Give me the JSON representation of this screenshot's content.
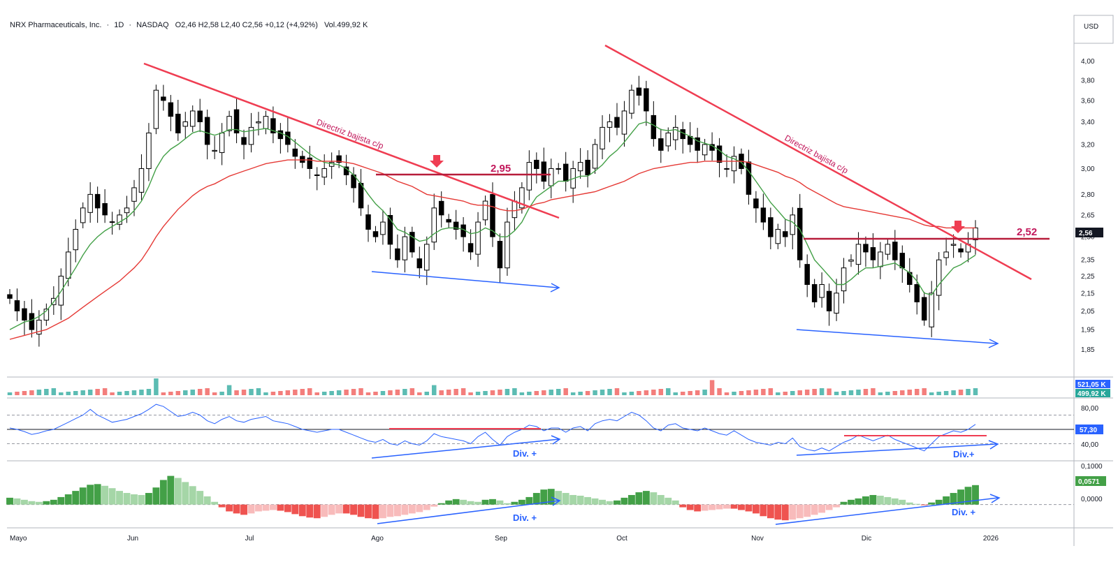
{
  "header": {
    "symbol": "NRX Pharmaceuticals, Inc.",
    "interval": "1D",
    "exchange": "NASDAQ",
    "ohlc": "O2,46  H2,58  L2,40  C2,56  +0,12 (+4,92%)",
    "volume": "Vol.499,92 K",
    "currency": "USD"
  },
  "chart_data": [
    {
      "type": "line",
      "panel": "price",
      "scale": "log",
      "ylim": [
        1.75,
        4.25
      ],
      "yticks": [
        "4,00",
        "3,80",
        "3,60",
        "3,40",
        "3,20",
        "3,00",
        "2,80",
        "2,65",
        "2,50",
        "2,35",
        "2,25",
        "2,15",
        "2,05",
        "1,95",
        "1,85"
      ],
      "xticks": [
        "Mayo",
        "Jun",
        "Jul",
        "Ago",
        "Sep",
        "Oct",
        "Nov",
        "Dic",
        "2026"
      ],
      "last_price_label": "2,56",
      "series": [
        {
          "name": "",
          "color": "#000000",
          "values": [
            2.12,
            2.05,
            2.0,
            1.95,
            2.0,
            2.06,
            2.12,
            2.25,
            2.4,
            2.55,
            2.7,
            2.8,
            2.7,
            2.65,
            2.6,
            2.65,
            2.7,
            2.85,
            3.0,
            3.3,
            3.7,
            3.6,
            3.45,
            3.3,
            3.4,
            3.5,
            3.4,
            3.2,
            3.15,
            3.3,
            3.45,
            3.3,
            3.2,
            3.35,
            3.4,
            3.45,
            3.3,
            3.25,
            3.2,
            3.1,
            3.05,
            3.0,
            2.95,
            3.0,
            3.05,
            3.05,
            2.95,
            2.85,
            2.7,
            2.55,
            2.5,
            2.6,
            2.45,
            2.35,
            2.5,
            2.4,
            2.3,
            2.45,
            2.7,
            2.65,
            2.6,
            2.55,
            2.5,
            2.4,
            2.6,
            2.75,
            2.5,
            2.3,
            2.6,
            2.75,
            2.85,
            3.05,
            3.0,
            2.9,
            3.0,
            3.0,
            2.9,
            3.0,
            3.05,
            2.95,
            3.2,
            3.35,
            3.4,
            3.35,
            3.5,
            3.7,
            3.65,
            3.5,
            3.25,
            3.15,
            3.3,
            3.35,
            3.25,
            3.2,
            3.15,
            3.2,
            3.15,
            3.05,
            3.0,
            3.1,
            3.0,
            2.8,
            2.7,
            2.6,
            2.5,
            2.55,
            2.5,
            2.65,
            2.35,
            2.2,
            2.1,
            2.2,
            2.05,
            2.15,
            2.3,
            2.35,
            2.45,
            2.4,
            2.35,
            2.4,
            2.45,
            2.35,
            2.3,
            2.2,
            2.1,
            2.0,
            2.15,
            2.35,
            2.4,
            2.45,
            2.4,
            2.45,
            2.56
          ]
        },
        {
          "name": "",
          "color": "#43a047",
          "values": [
            1.95,
            1.97,
            1.99,
            2.0,
            2.02,
            2.05,
            2.1,
            2.16,
            2.23,
            2.3,
            2.38,
            2.45,
            2.5,
            2.54,
            2.57,
            2.6,
            2.63,
            2.68,
            2.75,
            2.86,
            3.0,
            3.1,
            3.16,
            3.2,
            3.25,
            3.3,
            3.32,
            3.3,
            3.28,
            3.3,
            3.33,
            3.33,
            3.31,
            3.32,
            3.33,
            3.34,
            3.32,
            3.3,
            3.27,
            3.22,
            3.17,
            3.12,
            3.08,
            3.05,
            3.04,
            3.03,
            3.0,
            2.95,
            2.88,
            2.8,
            2.73,
            2.68,
            2.62,
            2.55,
            2.53,
            2.5,
            2.47,
            2.48,
            2.52,
            2.55,
            2.56,
            2.56,
            2.55,
            2.52,
            2.53,
            2.56,
            2.54,
            2.5,
            2.5,
            2.54,
            2.6,
            2.7,
            2.78,
            2.82,
            2.86,
            2.9,
            2.9,
            2.92,
            2.94,
            2.94,
            2.98,
            3.03,
            3.1,
            3.15,
            3.22,
            3.3,
            3.38,
            3.4,
            3.37,
            3.33,
            3.32,
            3.33,
            3.3,
            3.27,
            3.23,
            3.21,
            3.19,
            3.15,
            3.1,
            3.08,
            3.05,
            2.98,
            2.9,
            2.82,
            2.74,
            2.68,
            2.62,
            2.6,
            2.55,
            2.45,
            2.35,
            2.3,
            2.25,
            2.2,
            2.2,
            2.23,
            2.27,
            2.3,
            2.3,
            2.31,
            2.32,
            2.33,
            2.3,
            2.27,
            2.22,
            2.15,
            2.14,
            2.2,
            2.25,
            2.3,
            2.32,
            2.35,
            2.38
          ]
        },
        {
          "name": "",
          "color": "#e53935",
          "values": [
            1.9,
            1.91,
            1.92,
            1.93,
            1.94,
            1.95,
            1.97,
            1.99,
            2.01,
            2.04,
            2.07,
            2.1,
            2.13,
            2.16,
            2.19,
            2.22,
            2.26,
            2.3,
            2.35,
            2.42,
            2.5,
            2.57,
            2.63,
            2.69,
            2.74,
            2.79,
            2.83,
            2.86,
            2.88,
            2.91,
            2.94,
            2.96,
            2.98,
            3.0,
            3.02,
            3.04,
            3.05,
            3.06,
            3.07,
            3.07,
            3.07,
            3.07,
            3.06,
            3.06,
            3.06,
            3.06,
            3.05,
            3.04,
            3.02,
            3.0,
            2.98,
            2.96,
            2.93,
            2.9,
            2.88,
            2.86,
            2.83,
            2.8,
            2.79,
            2.78,
            2.77,
            2.76,
            2.75,
            2.73,
            2.72,
            2.72,
            2.71,
            2.69,
            2.68,
            2.68,
            2.69,
            2.71,
            2.73,
            2.74,
            2.76,
            2.77,
            2.78,
            2.79,
            2.8,
            2.81,
            2.82,
            2.84,
            2.86,
            2.88,
            2.9,
            2.93,
            2.96,
            2.98,
            3.0,
            3.01,
            3.02,
            3.03,
            3.04,
            3.05,
            3.05,
            3.06,
            3.06,
            3.06,
            3.06,
            3.06,
            3.06,
            3.05,
            3.03,
            3.01,
            2.99,
            2.97,
            2.94,
            2.92,
            2.89,
            2.85,
            2.82,
            2.79,
            2.76,
            2.73,
            2.71,
            2.7,
            2.69,
            2.68,
            2.67,
            2.66,
            2.65,
            2.64,
            2.63,
            2.62,
            2.6,
            2.58,
            2.57,
            2.57,
            2.56,
            2.56,
            2.56,
            2.56,
            2.56
          ]
        }
      ]
    },
    {
      "type": "bar",
      "panel": "volume",
      "labels": [
        "521,05 K",
        "499,92 K"
      ],
      "colors": {
        "up": "#26a69a",
        "down": "#ef5350"
      }
    },
    {
      "type": "line",
      "panel": "rsi",
      "ylim": [
        10,
        90
      ],
      "yticks": [
        "80,00",
        "40,00"
      ],
      "last_label": "57,30",
      "levels": [
        70,
        50,
        30
      ],
      "series": [
        {
          "name": "",
          "color": "#2962ff",
          "values": [
            52,
            50,
            47,
            43,
            45,
            48,
            50,
            55,
            60,
            65,
            70,
            78,
            70,
            65,
            60,
            62,
            64,
            68,
            72,
            78,
            85,
            82,
            75,
            68,
            70,
            74,
            70,
            62,
            58,
            64,
            68,
            62,
            60,
            64,
            66,
            68,
            62,
            60,
            58,
            54,
            50,
            48,
            46,
            48,
            50,
            50,
            46,
            42,
            38,
            34,
            32,
            36,
            30,
            28,
            34,
            30,
            28,
            34,
            44,
            40,
            38,
            36,
            34,
            30,
            40,
            46,
            36,
            28,
            40,
            46,
            50,
            56,
            54,
            48,
            52,
            52,
            46,
            52,
            54,
            48,
            58,
            62,
            64,
            62,
            68,
            74,
            70,
            62,
            52,
            48,
            56,
            58,
            52,
            50,
            48,
            52,
            48,
            44,
            42,
            48,
            42,
            36,
            32,
            30,
            28,
            32,
            30,
            38,
            26,
            22,
            20,
            24,
            20,
            26,
            32,
            36,
            42,
            38,
            34,
            38,
            42,
            36,
            32,
            28,
            24,
            20,
            30,
            40,
            44,
            48,
            46,
            50,
            57
          ]
        }
      ]
    },
    {
      "type": "bar",
      "panel": "macd-histogram",
      "ylim": [
        -0.06,
        0.12
      ],
      "yticks": [
        "0,1000",
        "0,0000"
      ],
      "last_label": "0,0571",
      "values": [
        0.02,
        0.018,
        0.014,
        0.01,
        0.008,
        0.01,
        0.014,
        0.022,
        0.03,
        0.04,
        0.05,
        0.058,
        0.06,
        0.055,
        0.048,
        0.04,
        0.034,
        0.03,
        0.028,
        0.034,
        0.05,
        0.072,
        0.084,
        0.078,
        0.066,
        0.054,
        0.04,
        0.024,
        0.008,
        -0.008,
        -0.02,
        -0.026,
        -0.03,
        -0.026,
        -0.02,
        -0.018,
        -0.016,
        -0.018,
        -0.022,
        -0.028,
        -0.034,
        -0.038,
        -0.04,
        -0.036,
        -0.03,
        -0.026,
        -0.026,
        -0.03,
        -0.036,
        -0.04,
        -0.042,
        -0.04,
        -0.036,
        -0.034,
        -0.03,
        -0.026,
        -0.022,
        -0.016,
        -0.006,
        0.004,
        0.012,
        0.016,
        0.014,
        0.01,
        0.008,
        0.014,
        0.016,
        0.012,
        0.004,
        0.008,
        0.014,
        0.022,
        0.034,
        0.044,
        0.046,
        0.04,
        0.034,
        0.028,
        0.026,
        0.022,
        0.018,
        0.014,
        0.01,
        0.012,
        0.02,
        0.028,
        0.036,
        0.04,
        0.036,
        0.028,
        0.02,
        0.012,
        -0.008,
        -0.016,
        -0.02,
        -0.018,
        -0.016,
        -0.014,
        -0.012,
        -0.012,
        -0.016,
        -0.02,
        -0.026,
        -0.034,
        -0.04,
        -0.044,
        -0.046,
        -0.044,
        -0.04,
        -0.036,
        -0.03,
        -0.024,
        -0.016,
        -0.008,
        0.008,
        0.014,
        0.018,
        0.024,
        0.028,
        0.026,
        0.022,
        0.018,
        0.014,
        0.006,
        0.002,
        -0.002,
        0.006,
        0.014,
        0.024,
        0.034,
        0.044,
        0.052,
        0.057
      ],
      "colors": {
        "pos_strong": "#43a047",
        "pos_weak": "#a5d6a7",
        "neg_strong": "#ef5350",
        "neg_weak": "#f8bbbb"
      }
    }
  ],
  "annotations": {
    "trend1_label": "Directriz bajista c/p",
    "trend2_label": "Directriz bajista c/p",
    "level1": "2,95",
    "level2": "2,52",
    "div_rsi_1": "Div. +",
    "div_rsi_2": "Div.+",
    "div_macd_1": "Div. +",
    "div_macd_2": "Div. +"
  }
}
